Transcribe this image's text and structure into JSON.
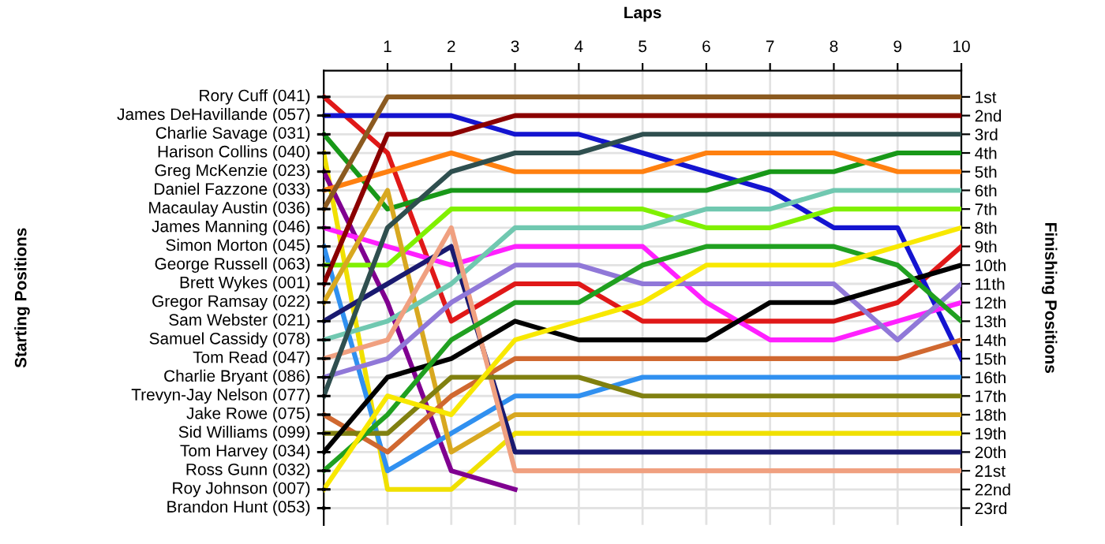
{
  "chart_data": {
    "type": "line",
    "xlabel": "Laps",
    "ylabel": "Finishing Positions",
    "x": [
      0,
      1,
      2,
      3,
      4,
      5,
      6,
      7,
      8,
      9,
      10
    ],
    "xlim": [
      0,
      10
    ],
    "xticks": [
      1,
      2,
      3,
      4,
      5,
      6,
      7,
      8,
      9,
      10
    ],
    "ylim": [
      23.9,
      -0.4
    ],
    "yticks": [
      {
        "value": 1,
        "label": "1st"
      },
      {
        "value": 2,
        "label": "2nd"
      },
      {
        "value": 3,
        "label": "3rd"
      },
      {
        "value": 4,
        "label": "4th"
      },
      {
        "value": 5,
        "label": "5th"
      },
      {
        "value": 6,
        "label": "6th"
      },
      {
        "value": 7,
        "label": "7th"
      },
      {
        "value": 8,
        "label": "8th"
      },
      {
        "value": 9,
        "label": "9th"
      },
      {
        "value": 10,
        "label": "10th"
      },
      {
        "value": 11,
        "label": "11th"
      },
      {
        "value": 12,
        "label": "12th"
      },
      {
        "value": 13,
        "label": "13th"
      },
      {
        "value": 14,
        "label": "14th"
      },
      {
        "value": 15,
        "label": "15th"
      },
      {
        "value": 16,
        "label": "16th"
      },
      {
        "value": 17,
        "label": "17th"
      },
      {
        "value": 18,
        "label": "18th"
      },
      {
        "value": 19,
        "label": "19th"
      },
      {
        "value": 20,
        "label": "20th"
      },
      {
        "value": 21,
        "label": "21st"
      },
      {
        "value": 22,
        "label": "22nd"
      },
      {
        "value": 23,
        "label": "23rd"
      }
    ],
    "annotations": [
      "Starting Positions",
      "Rory Cuff (041)",
      "James DeHavillande (057)",
      "Charlie Savage (031)",
      "Harison Collins (040)",
      "Greg McKenzie (023)",
      "Daniel Fazzone (033)",
      "Macaulay Austin (036)",
      "James Manning (046)",
      "Simon Morton (045)",
      "George Russell (063)",
      "Brett Wykes (001)",
      "Gregor Ramsay (022)",
      "Sam Webster (021)",
      "Samuel Cassidy (078)",
      "Tom Read (047)",
      "Charlie Bryant (086)",
      "Trevyn-Jay Nelson (077)",
      "Jake Rowe (075)",
      "Sid Williams (099)",
      "Tom Harvey (034)",
      "Ross Gunn (032)",
      "Roy Johnson (007)",
      "Brandon Hunt (053)"
    ],
    "grid": true,
    "marker": "none",
    "line_style": "solid",
    "series": [
      {
        "color": "#e01818",
        "values": [
          1,
          4,
          13,
          11,
          11,
          13,
          13,
          13,
          13,
          12,
          9
        ]
      },
      {
        "color": "#1414d0",
        "values": [
          2,
          2,
          2,
          3,
          3,
          4,
          5,
          6,
          8,
          8,
          15
        ]
      },
      {
        "color": "#189818",
        "values": [
          3,
          7,
          6,
          6,
          6,
          6,
          6,
          5,
          5,
          4,
          4
        ]
      },
      {
        "color": "#f0e000",
        "values": [
          4,
          22,
          22,
          19,
          19,
          19,
          19,
          19,
          19,
          19,
          19
        ]
      },
      {
        "color": "#800090",
        "values": [
          5,
          12,
          21,
          22,
          null,
          null,
          null,
          null,
          null,
          null,
          null
        ]
      },
      {
        "color": "#ff8010",
        "values": [
          6,
          5,
          4,
          5,
          5,
          5,
          4,
          4,
          4,
          5,
          5
        ]
      },
      {
        "color": "#8b5a20",
        "values": [
          7,
          1,
          1,
          1,
          1,
          1,
          1,
          1,
          1,
          1,
          1
        ]
      },
      {
        "color": "#ff20ff",
        "values": [
          8,
          9,
          10,
          9,
          9,
          9,
          12,
          14,
          14,
          13,
          12
        ]
      },
      {
        "color": "#3090f0",
        "values": [
          9,
          21,
          19,
          17,
          17,
          16,
          16,
          16,
          16,
          16,
          16
        ]
      },
      {
        "color": "#80f000",
        "values": [
          10,
          10,
          7,
          7,
          7,
          7,
          8,
          8,
          7,
          7,
          7
        ]
      },
      {
        "color": "#8b0000",
        "values": [
          11,
          3,
          3,
          2,
          2,
          2,
          2,
          2,
          2,
          2,
          2
        ]
      },
      {
        "color": "#d8a820",
        "values": [
          12,
          6,
          20,
          18,
          18,
          18,
          18,
          18,
          18,
          18,
          18
        ]
      },
      {
        "color": "#1a1a70",
        "values": [
          13,
          11,
          9,
          20,
          20,
          20,
          20,
          20,
          20,
          20,
          20
        ]
      },
      {
        "color": "#70c8b0",
        "values": [
          14,
          13,
          11,
          8,
          8,
          8,
          7,
          7,
          6,
          6,
          6
        ]
      },
      {
        "color": "#f0a080",
        "values": [
          15,
          14,
          8,
          21,
          21,
          21,
          21,
          21,
          21,
          21,
          21
        ]
      },
      {
        "color": "#9078d8",
        "values": [
          16,
          15,
          12,
          10,
          10,
          11,
          11,
          11,
          11,
          14,
          11
        ]
      },
      {
        "color": "#2f4f4f",
        "values": [
          17,
          8,
          5,
          4,
          4,
          3,
          3,
          3,
          3,
          3,
          3
        ]
      },
      {
        "color": "#d06830",
        "values": [
          18,
          20,
          17,
          15,
          15,
          15,
          15,
          15,
          15,
          15,
          14
        ]
      },
      {
        "color": "#808010",
        "values": [
          19,
          19,
          16,
          16,
          16,
          17,
          17,
          17,
          17,
          17,
          17
        ]
      },
      {
        "color": "#000000",
        "values": [
          20,
          16,
          15,
          13,
          14,
          14,
          14,
          12,
          12,
          11,
          10
        ]
      },
      {
        "color": "#20a020",
        "values": [
          21,
          18,
          14,
          12,
          12,
          10,
          9,
          9,
          9,
          10,
          13
        ]
      },
      {
        "color": "#f8e800",
        "values": [
          22,
          17,
          18,
          14,
          13,
          12,
          10,
          10,
          10,
          9,
          8
        ]
      }
    ]
  }
}
